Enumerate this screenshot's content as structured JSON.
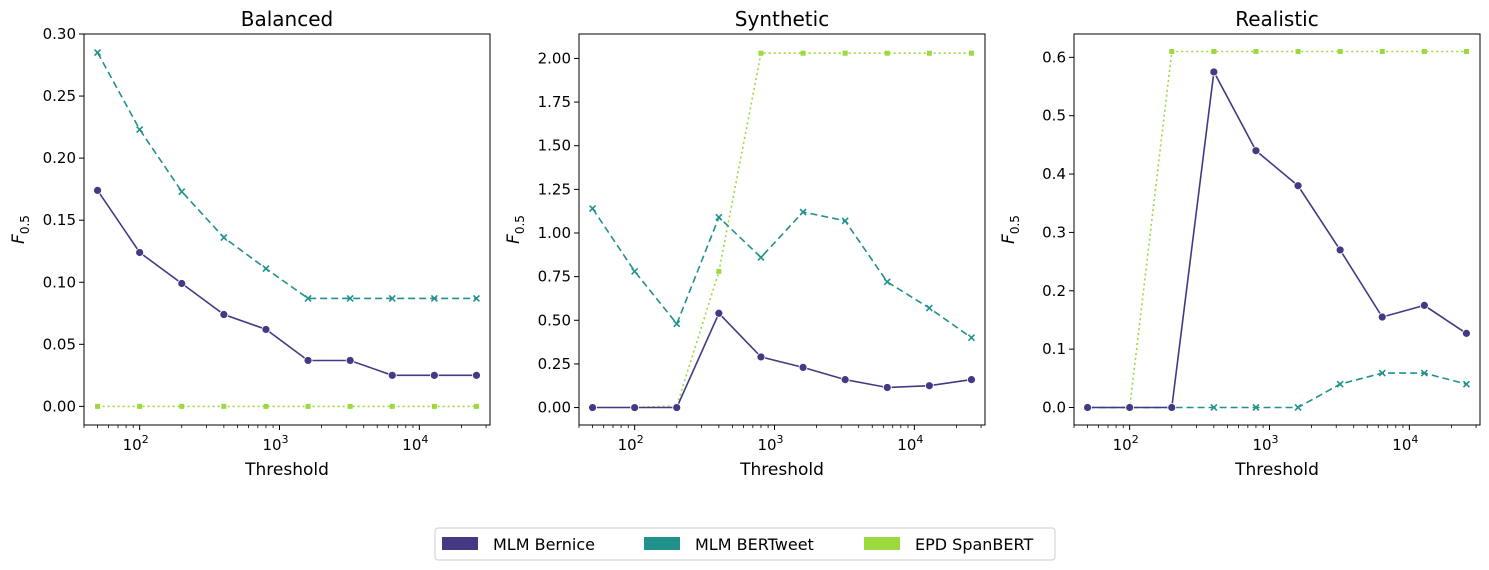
{
  "chart_data": [
    {
      "type": "line",
      "title": "Balanced",
      "xlabel": "Threshold",
      "ylabel_main": "F",
      "ylabel_sub": "0.5",
      "xscale": "log",
      "xlim": [
        40,
        32000
      ],
      "ylim": [
        -0.015,
        0.3
      ],
      "yticks": [
        0.0,
        0.05,
        0.1,
        0.15,
        0.2,
        0.25,
        0.3
      ],
      "ytick_labels": [
        "0.00",
        "0.05",
        "0.10",
        "0.15",
        "0.20",
        "0.25",
        "0.30"
      ],
      "xticks": [
        100,
        1000,
        10000
      ],
      "xtick_base": "10",
      "xtick_exps": [
        "2",
        "3",
        "4"
      ],
      "x": [
        50,
        100,
        200,
        400,
        800,
        1600,
        3200,
        6400,
        12800,
        25600
      ],
      "series": [
        {
          "name": "MLM Bernice",
          "values": [
            0.174,
            0.124,
            0.099,
            0.074,
            0.062,
            0.037,
            0.037,
            0.025,
            0.025,
            0.025
          ]
        },
        {
          "name": "MLM BERTweet",
          "values": [
            0.285,
            0.223,
            0.173,
            0.136,
            0.111,
            0.087,
            0.087,
            0.087,
            0.087,
            0.087
          ]
        },
        {
          "name": "EPD SpanBERT",
          "values": [
            0,
            0,
            0,
            0,
            0,
            0,
            0,
            0,
            0,
            0
          ]
        }
      ]
    },
    {
      "type": "line",
      "title": "Synthetic",
      "xlabel": "Threshold",
      "ylabel_main": "F",
      "ylabel_sub": "0.5",
      "xscale": "log",
      "xlim": [
        40,
        32000
      ],
      "ylim": [
        -0.1,
        2.14
      ],
      "yticks": [
        0.0,
        0.25,
        0.5,
        0.75,
        1.0,
        1.25,
        1.5,
        1.75,
        2.0
      ],
      "ytick_labels": [
        "0.00",
        "0.25",
        "0.50",
        "0.75",
        "1.00",
        "1.25",
        "1.50",
        "1.75",
        "2.00"
      ],
      "xticks": [
        100,
        1000,
        10000
      ],
      "xtick_base": "10",
      "xtick_exps": [
        "2",
        "3",
        "4"
      ],
      "x": [
        50,
        100,
        200,
        400,
        800,
        1600,
        3200,
        6400,
        12800,
        25600
      ],
      "series": [
        {
          "name": "MLM Bernice",
          "values": [
            0,
            0,
            0,
            0.54,
            0.29,
            0.23,
            0.16,
            0.115,
            0.125,
            0.16
          ]
        },
        {
          "name": "MLM BERTweet",
          "values": [
            1.14,
            0.78,
            0.48,
            1.09,
            0.86,
            1.12,
            1.07,
            0.72,
            0.57,
            0.4
          ]
        },
        {
          "name": "EPD SpanBERT",
          "values": [
            0,
            0,
            0.01,
            0.78,
            2.03,
            2.03,
            2.03,
            2.03,
            2.03,
            2.03
          ]
        }
      ]
    },
    {
      "type": "line",
      "title": "Realistic",
      "xlabel": "Threshold",
      "ylabel_main": "F",
      "ylabel_sub": "0.5",
      "xscale": "log",
      "xlim": [
        40,
        32000
      ],
      "ylim": [
        -0.03,
        0.64
      ],
      "yticks": [
        0.0,
        0.1,
        0.2,
        0.3,
        0.4,
        0.5,
        0.6
      ],
      "ytick_labels": [
        "0.0",
        "0.1",
        "0.2",
        "0.3",
        "0.4",
        "0.5",
        "0.6"
      ],
      "xticks": [
        100,
        1000,
        10000
      ],
      "xtick_base": "10",
      "xtick_exps": [
        "2",
        "3",
        "4"
      ],
      "x": [
        50,
        100,
        200,
        400,
        800,
        1600,
        3200,
        6400,
        12800,
        25600
      ],
      "series": [
        {
          "name": "MLM Bernice",
          "values": [
            0,
            0,
            0,
            0.575,
            0.44,
            0.38,
            0.27,
            0.155,
            0.175,
            0.127
          ]
        },
        {
          "name": "MLM BERTweet",
          "values": [
            0,
            0,
            0,
            0,
            0,
            0,
            0.04,
            0.059,
            0.059,
            0.04
          ]
        },
        {
          "name": "EPD SpanBERT",
          "values": [
            0,
            0,
            0.61,
            0.61,
            0.61,
            0.61,
            0.61,
            0.61,
            0.61,
            0.61
          ]
        }
      ]
    }
  ],
  "legend": {
    "placement": "bottom-center",
    "entries": [
      {
        "label": "MLM Bernice",
        "color": "#443983"
      },
      {
        "label": "MLM BERTweet",
        "color": "#21918c"
      },
      {
        "label": "EPD SpanBERT",
        "color": "#9bd93c"
      }
    ]
  },
  "series_styles": [
    {
      "color": "#443983",
      "dash": "none",
      "marker": "circle"
    },
    {
      "color": "#21918c",
      "dash": "dashed",
      "marker": "x"
    },
    {
      "color": "#9bd93c",
      "dash": "dotted",
      "marker": "square"
    }
  ]
}
